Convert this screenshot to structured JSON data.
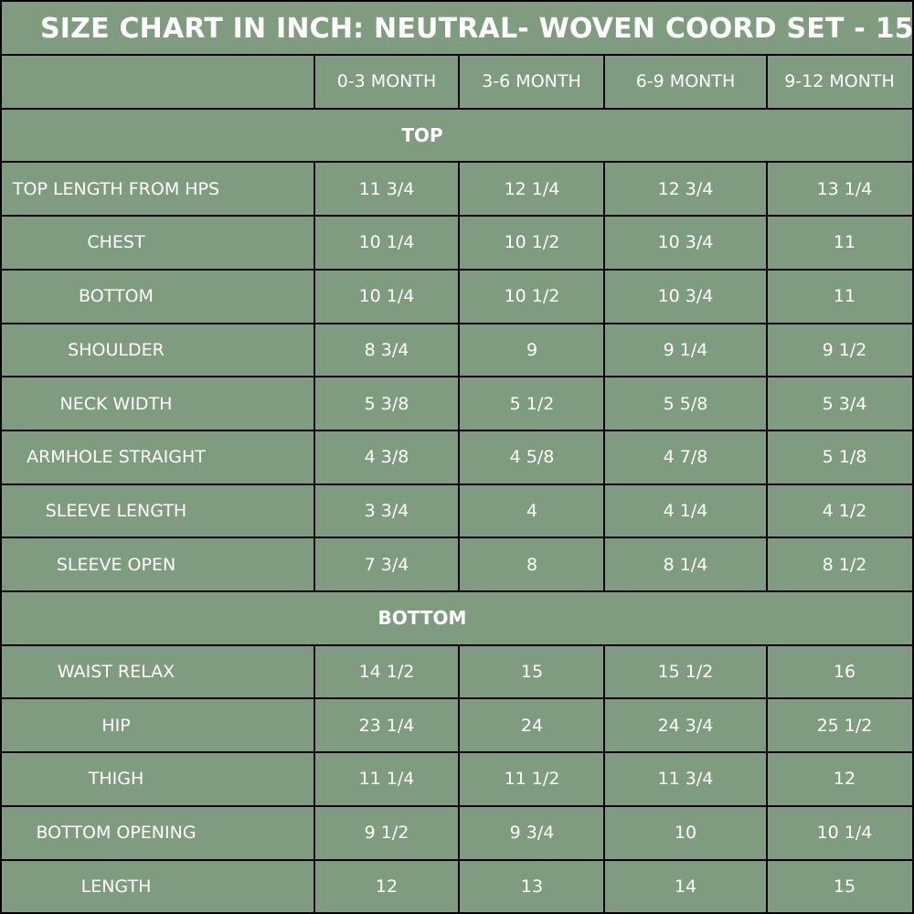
{
  "title": "SIZE CHART IN INCH: NEUTRAL- WOVEN COORD SET - 15",
  "columns": [
    "0-3 MONTH",
    "3-6 MONTH",
    "6-9 MONTH",
    "9-12 MONTH"
  ],
  "sections": [
    {
      "label": "TOP",
      "rows": [
        {
          "label": "TOP LENGTH FROM HPS",
          "values": [
            "11 3/4",
            "12 1/4",
            "12 3/4",
            "13 1/4"
          ]
        },
        {
          "label": "CHEST",
          "values": [
            "10 1/4",
            "10 1/2",
            "10 3/4",
            "11"
          ]
        },
        {
          "label": "BOTTOM",
          "values": [
            "10 1/4",
            "10 1/2",
            "10 3/4",
            "11"
          ]
        },
        {
          "label": "SHOULDER",
          "values": [
            "8 3/4",
            "9",
            "9 1/4",
            "9 1/2"
          ]
        },
        {
          "label": "NECK WIDTH",
          "values": [
            "5 3/8",
            "5 1/2",
            "5 5/8",
            "5 3/4"
          ]
        },
        {
          "label": "ARMHOLE STRAIGHT",
          "values": [
            "4 3/8",
            "4 5/8",
            "4 7/8",
            "5 1/8"
          ]
        },
        {
          "label": "SLEEVE LENGTH",
          "values": [
            "3 3/4",
            "4",
            "4 1/4",
            "4 1/2"
          ]
        },
        {
          "label": "SLEEVE OPEN",
          "values": [
            "7 3/4",
            "8",
            "8 1/4",
            "8 1/2"
          ]
        }
      ]
    },
    {
      "label": "BOTTOM",
      "rows": [
        {
          "label": "WAIST RELAX",
          "values": [
            "14 1/2",
            "15",
            "15 1/2",
            "16"
          ]
        },
        {
          "label": "HIP",
          "values": [
            "23 1/4",
            "24",
            "24 3/4",
            "25 1/2"
          ]
        },
        {
          "label": "THIGH",
          "values": [
            "11 1/4",
            "11 1/2",
            "11 3/4",
            "12"
          ]
        },
        {
          "label": "BOTTOM OPENING",
          "values": [
            "9 1/2",
            "9 3/4",
            "10",
            "10 1/4"
          ]
        },
        {
          "label": "LENGTH",
          "values": [
            "12",
            "13",
            "14",
            "15"
          ]
        }
      ]
    }
  ],
  "colors": {
    "background": "#809c80",
    "border": "#000000",
    "text": "#ffffff"
  }
}
